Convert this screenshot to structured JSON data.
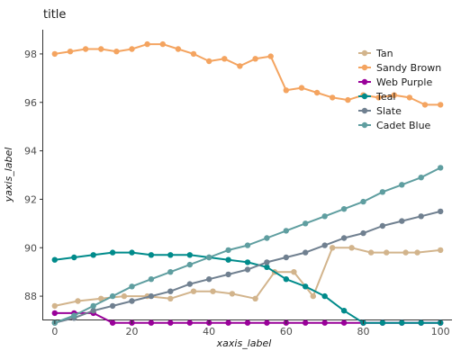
{
  "chart_data": {
    "type": "line",
    "title": "title",
    "xlabel": "xaxis_label",
    "ylabel": "yaxis_label",
    "xlim": [
      -3,
      103
    ],
    "ylim": [
      87,
      99
    ],
    "x_ticks": [
      0,
      20,
      40,
      60,
      80,
      100
    ],
    "y_ticks": [
      88,
      90,
      92,
      94,
      96,
      98
    ],
    "grid": false,
    "legend_position": "right",
    "series": [
      {
        "name": "Tan",
        "color": "#D2B48C",
        "points": [
          [
            0,
            87.6
          ],
          [
            6,
            87.8
          ],
          [
            12,
            87.9
          ],
          [
            18,
            88.0
          ],
          [
            24,
            88.0
          ],
          [
            30,
            87.9
          ],
          [
            36,
            88.2
          ],
          [
            41,
            88.2
          ],
          [
            46,
            88.1
          ],
          [
            52,
            87.9
          ],
          [
            57,
            89.0
          ],
          [
            62,
            89.0
          ],
          [
            67,
            88.0
          ],
          [
            72,
            90.0
          ],
          [
            77,
            90.0
          ],
          [
            82,
            89.8
          ],
          [
            86,
            89.8
          ],
          [
            91,
            89.8
          ],
          [
            94,
            89.8
          ],
          [
            100,
            89.9
          ]
        ]
      },
      {
        "name": "Sandy Brown",
        "color": "#F4A460",
        "points": [
          [
            0,
            98.0
          ],
          [
            4,
            98.1
          ],
          [
            8,
            98.2
          ],
          [
            12,
            98.2
          ],
          [
            16,
            98.1
          ],
          [
            20,
            98.2
          ],
          [
            24,
            98.4
          ],
          [
            28,
            98.4
          ],
          [
            32,
            98.2
          ],
          [
            36,
            98.0
          ],
          [
            40,
            97.7
          ],
          [
            44,
            97.8
          ],
          [
            48,
            97.5
          ],
          [
            52,
            97.8
          ],
          [
            56,
            97.9
          ],
          [
            60,
            96.5
          ],
          [
            64,
            96.6
          ],
          [
            68,
            96.4
          ],
          [
            72,
            96.2
          ],
          [
            76,
            96.1
          ],
          [
            80,
            96.3
          ],
          [
            84,
            96.2
          ],
          [
            88,
            96.3
          ],
          [
            92,
            96.2
          ],
          [
            96,
            95.9
          ],
          [
            100,
            95.9
          ]
        ]
      },
      {
        "name": "Web Purple",
        "color": "#990099",
        "points": [
          [
            0,
            87.3
          ],
          [
            5,
            87.3
          ],
          [
            10,
            87.3
          ],
          [
            15,
            86.9
          ],
          [
            20,
            86.9
          ],
          [
            25,
            86.9
          ],
          [
            30,
            86.9
          ],
          [
            35,
            86.9
          ],
          [
            40,
            86.9
          ],
          [
            45,
            86.9
          ],
          [
            50,
            86.9
          ],
          [
            55,
            86.9
          ],
          [
            60,
            86.9
          ],
          [
            65,
            86.9
          ],
          [
            70,
            86.9
          ],
          [
            75,
            86.9
          ],
          [
            80,
            86.9
          ],
          [
            85,
            86.9
          ],
          [
            90,
            86.9
          ],
          [
            95,
            86.9
          ],
          [
            100,
            86.9
          ]
        ]
      },
      {
        "name": "Teal",
        "color": "#008B8B",
        "points": [
          [
            0,
            89.5
          ],
          [
            5,
            89.6
          ],
          [
            10,
            89.7
          ],
          [
            15,
            89.8
          ],
          [
            20,
            89.8
          ],
          [
            25,
            89.7
          ],
          [
            30,
            89.7
          ],
          [
            35,
            89.7
          ],
          [
            40,
            89.6
          ],
          [
            45,
            89.5
          ],
          [
            50,
            89.4
          ],
          [
            55,
            89.2
          ],
          [
            60,
            88.7
          ],
          [
            65,
            88.4
          ],
          [
            70,
            88.0
          ],
          [
            75,
            87.4
          ],
          [
            80,
            86.9
          ],
          [
            85,
            86.9
          ],
          [
            90,
            86.9
          ],
          [
            95,
            86.9
          ],
          [
            100,
            86.9
          ]
        ]
      },
      {
        "name": "Slate",
        "color": "#708090",
        "points": [
          [
            0,
            86.9
          ],
          [
            5,
            87.1
          ],
          [
            10,
            87.4
          ],
          [
            15,
            87.6
          ],
          [
            20,
            87.8
          ],
          [
            25,
            88.0
          ],
          [
            30,
            88.2
          ],
          [
            35,
            88.5
          ],
          [
            40,
            88.7
          ],
          [
            45,
            88.9
          ],
          [
            50,
            89.1
          ],
          [
            55,
            89.4
          ],
          [
            60,
            89.6
          ],
          [
            65,
            89.8
          ],
          [
            70,
            90.1
          ],
          [
            75,
            90.4
          ],
          [
            80,
            90.6
          ],
          [
            85,
            90.9
          ],
          [
            90,
            91.1
          ],
          [
            95,
            91.3
          ],
          [
            100,
            91.5
          ]
        ]
      },
      {
        "name": "Cadet Blue",
        "color": "#5F9EA0",
        "points": [
          [
            0,
            86.9
          ],
          [
            5,
            87.2
          ],
          [
            10,
            87.6
          ],
          [
            15,
            88.0
          ],
          [
            20,
            88.4
          ],
          [
            25,
            88.7
          ],
          [
            30,
            89.0
          ],
          [
            35,
            89.3
          ],
          [
            40,
            89.6
          ],
          [
            45,
            89.9
          ],
          [
            50,
            90.1
          ],
          [
            55,
            90.4
          ],
          [
            60,
            90.7
          ],
          [
            65,
            91.0
          ],
          [
            70,
            91.3
          ],
          [
            75,
            91.6
          ],
          [
            80,
            91.9
          ],
          [
            85,
            92.3
          ],
          [
            90,
            92.6
          ],
          [
            95,
            92.9
          ],
          [
            100,
            93.3
          ]
        ]
      }
    ]
  }
}
